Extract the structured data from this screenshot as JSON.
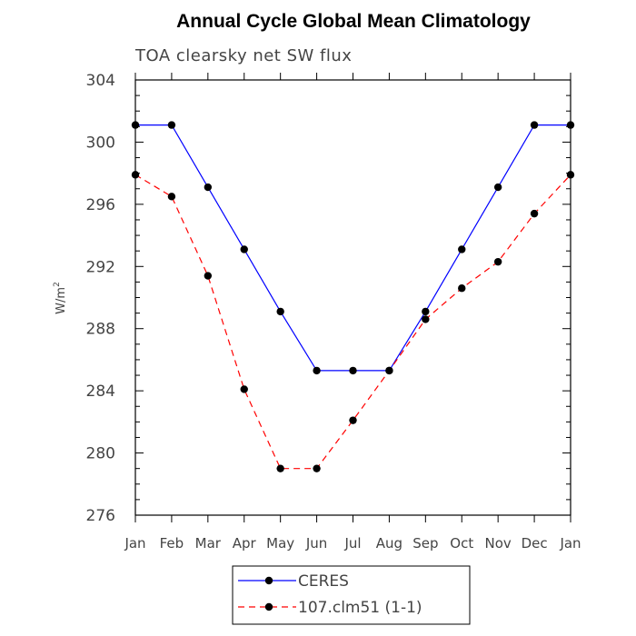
{
  "chart_data": {
    "type": "line",
    "title": "Annual Cycle Global Mean Climatology",
    "subtitle": "TOA clearsky net SW flux",
    "xlabel": "",
    "ylabel": "W/m",
    "ylabel_sup": "2",
    "categories": [
      "Jan",
      "Feb",
      "Mar",
      "Apr",
      "May",
      "Jun",
      "Jul",
      "Aug",
      "Sep",
      "Oct",
      "Nov",
      "Dec",
      "Jan"
    ],
    "ylim": [
      276,
      304
    ],
    "yticks": [
      "276",
      "280",
      "284",
      "288",
      "292",
      "296",
      "300",
      "304"
    ],
    "legend_position": "bottom-center",
    "series": [
      {
        "name": "CERES",
        "color": "#0000ff",
        "dash": "solid",
        "values": [
          301.1,
          301.1,
          297.1,
          293.1,
          289.1,
          285.3,
          285.3,
          285.3,
          289.1,
          293.1,
          297.1,
          301.1,
          301.1
        ]
      },
      {
        "name": "107.clm51 (1-1)",
        "color": "#ff0000",
        "dash": "dashed",
        "values": [
          297.9,
          296.5,
          291.4,
          284.1,
          279.0,
          279.0,
          282.1,
          285.3,
          288.6,
          290.6,
          292.3,
          295.4,
          297.9
        ]
      }
    ]
  }
}
